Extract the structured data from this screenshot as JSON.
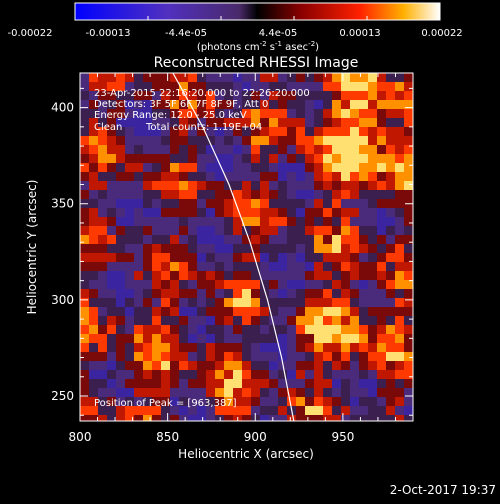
{
  "chart_data": {
    "type": "heatmap",
    "title": "Reconstructed RHESSI Image",
    "xlabel": "Heliocentric X (arcsec)",
    "ylabel": "Heliocentric Y (arcsec)",
    "xlim": [
      800,
      990
    ],
    "ylim": [
      237,
      418
    ],
    "xticks": [
      800,
      850,
      900,
      950
    ],
    "yticks": [
      250,
      300,
      350,
      400
    ],
    "colorbar": {
      "ticks": [
        "-0.00022",
        "-0.00013",
        "-4.4e-05",
        "4.4e-05",
        "0.00013",
        "0.00022"
      ],
      "units_main": "(photons cm",
      "units_s1": "-2",
      "units_s2": " s",
      "units_s3": "-1",
      "units_s4": " asec",
      "units_s5": "-2",
      "units_end": ")",
      "min": -0.00022,
      "max": 0.00022
    },
    "annotations": {
      "time": "23-Apr-2015 22:16:20.000 to 22:26:20.000",
      "detectors": "Detectors: 3F 5F 6F 7F 8F 9F, Att 0",
      "energy": "Energy Range: 12.0 - 25.0 keV",
      "clean": "Clean",
      "counts": "Total counts: 1.19E+04",
      "peak": "Position of Peak = [963,387]"
    },
    "peak": [
      963,
      387
    ],
    "limb_curve": [
      [
        853,
        418
      ],
      [
        870,
        390
      ],
      [
        885,
        360
      ],
      [
        897,
        330
      ],
      [
        907,
        300
      ],
      [
        915,
        270
      ],
      [
        922,
        237
      ]
    ],
    "grid": false
  },
  "footer": {
    "date": "2-Oct-2017 19:37"
  }
}
